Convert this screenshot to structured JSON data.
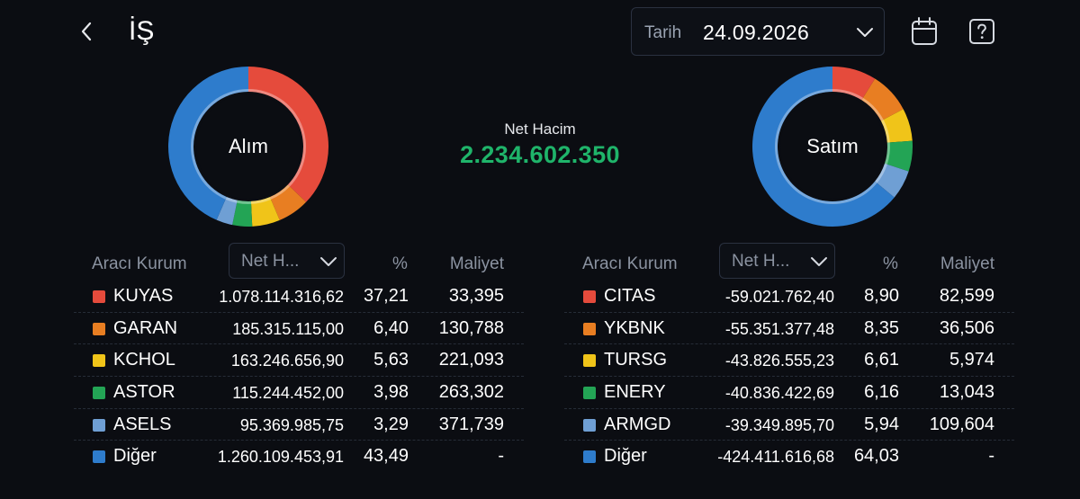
{
  "header": {
    "title": "İŞ",
    "date_label": "Tarih",
    "date_value": "24.09.2026"
  },
  "icons": {
    "back": "chevron-left-icon",
    "date_dropdown": "chevron-down-icon",
    "calendar": "calendar-icon",
    "help": "help-icon"
  },
  "summary": {
    "net_label": "Net Hacim",
    "net_value": "2.234.602.350",
    "net_color": "#1fb46a"
  },
  "colors": {
    "red": "#e54b3c",
    "orange": "#e87e22",
    "yellow": "#f0c419",
    "green": "#23a455",
    "lightblue": "#6f9fd4",
    "blue": "#2e7ccc"
  },
  "buy": {
    "donut_label": "Alım",
    "columns": {
      "broker": "Aracı Kurum",
      "sort": "Net H...",
      "pct": "%",
      "cost": "Maliyet"
    },
    "rows": [
      {
        "name": "KUYAS",
        "net": "1.078.114.316,62",
        "pct": "37,21",
        "cost": "33,395",
        "color": "#e54b3c",
        "share": 37.21
      },
      {
        "name": "GARAN",
        "net": "185.315.115,00",
        "pct": "6,40",
        "cost": "130,788",
        "color": "#e87e22",
        "share": 6.4
      },
      {
        "name": "KCHOL",
        "net": "163.246.656,90",
        "pct": "5,63",
        "cost": "221,093",
        "color": "#f0c419",
        "share": 5.63
      },
      {
        "name": "ASTOR",
        "net": "115.244.452,00",
        "pct": "3,98",
        "cost": "263,302",
        "color": "#23a455",
        "share": 3.98
      },
      {
        "name": "ASELS",
        "net": "95.369.985,75",
        "pct": "3,29",
        "cost": "371,739",
        "color": "#6f9fd4",
        "share": 3.29
      },
      {
        "name": "Diğer",
        "net": "1.260.109.453,91",
        "pct": "43,49",
        "cost": "-",
        "color": "#2e7ccc",
        "share": 43.49
      }
    ]
  },
  "sell": {
    "donut_label": "Satım",
    "columns": {
      "broker": "Aracı Kurum",
      "sort": "Net H...",
      "pct": "%",
      "cost": "Maliyet"
    },
    "rows": [
      {
        "name": "CITAS",
        "net": "-59.021.762,40",
        "pct": "8,90",
        "cost": "82,599",
        "color": "#e54b3c",
        "share": 8.9
      },
      {
        "name": "YKBNK",
        "net": "-55.351.377,48",
        "pct": "8,35",
        "cost": "36,506",
        "color": "#e87e22",
        "share": 8.35
      },
      {
        "name": "TURSG",
        "net": "-43.826.555,23",
        "pct": "6,61",
        "cost": "5,974",
        "color": "#f0c419",
        "share": 6.61
      },
      {
        "name": "ENERY",
        "net": "-40.836.422,69",
        "pct": "6,16",
        "cost": "13,043",
        "color": "#23a455",
        "share": 6.16
      },
      {
        "name": "ARMGD",
        "net": "-39.349.895,70",
        "pct": "5,94",
        "cost": "109,604",
        "color": "#6f9fd4",
        "share": 5.94
      },
      {
        "name": "Diğer",
        "net": "-424.411.616,68",
        "pct": "64,03",
        "cost": "-",
        "color": "#2e7ccc",
        "share": 64.03
      }
    ]
  }
}
